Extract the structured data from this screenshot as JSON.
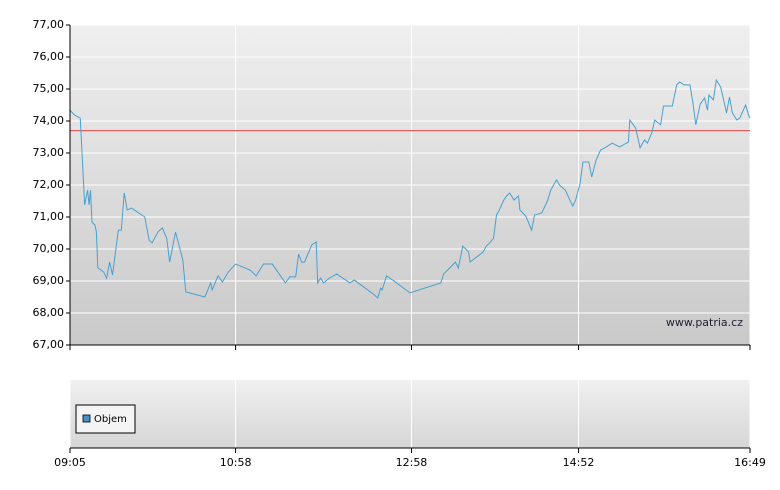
{
  "chart_data": {
    "type": "line",
    "watermark": "www.patria.cz",
    "xlim": [
      545,
      1009
    ],
    "xticks": [
      {
        "value": 545,
        "label": "09:05"
      },
      {
        "value": 658,
        "label": "10:58"
      },
      {
        "value": 778,
        "label": "12:58"
      },
      {
        "value": 892,
        "label": "14:52"
      },
      {
        "value": 1009,
        "label": "16:49"
      }
    ],
    "ylim": [
      67,
      77
    ],
    "yticks": [
      {
        "value": 67,
        "label": "67,00"
      },
      {
        "value": 68,
        "label": "68,00"
      },
      {
        "value": 69,
        "label": "69,00"
      },
      {
        "value": 70,
        "label": "70,00"
      },
      {
        "value": 71,
        "label": "71,00"
      },
      {
        "value": 72,
        "label": "72,00"
      },
      {
        "value": 73,
        "label": "73,00"
      },
      {
        "value": 74,
        "label": "74,00"
      },
      {
        "value": 75,
        "label": "75,00"
      },
      {
        "value": 76,
        "label": "76,00"
      },
      {
        "value": 77,
        "label": "77,00"
      }
    ],
    "grid": true,
    "reference_line": {
      "value": 73.7,
      "color": "#e06060"
    },
    "volume_legend": {
      "label": "Objem",
      "color": "#4a90c8"
    },
    "series": [
      {
        "color": "#4aa0d0",
        "x": [
          545,
          548,
          552,
          555,
          557,
          558,
          559,
          560,
          562,
          563,
          564,
          568,
          570,
          572,
          574,
          578,
          580,
          582,
          584,
          587,
          596,
          599,
          601,
          605,
          608,
          611,
          613,
          617,
          622,
          624,
          637,
          641,
          642,
          646,
          649,
          653,
          658,
          668,
          672,
          677,
          683,
          692,
          695,
          699,
          701,
          703,
          705,
          710,
          713,
          714,
          716,
          718,
          722,
          727,
          736,
          739,
          752,
          755,
          757,
          758,
          761,
          767,
          777,
          798,
          800,
          808,
          810,
          813,
          817,
          818,
          827,
          829,
          832,
          834,
          836,
          838,
          841,
          843,
          845,
          848,
          851,
          852,
          856,
          860,
          862,
          867,
          871,
          873,
          875,
          877,
          879,
          883,
          888,
          890,
          893,
          895,
          899,
          901,
          904,
          907,
          911,
          915,
          920,
          926,
          927,
          931,
          934,
          937,
          939,
          942,
          944,
          948,
          950,
          956,
          959,
          961,
          964,
          968,
          970,
          972,
          975,
          978,
          980,
          981,
          984,
          986,
          989,
          991,
          993,
          995,
          997,
          1000,
          1002,
          1006,
          1008,
          1009
        ],
        "values": [
          74.34,
          74.19,
          74.09,
          71.38,
          71.84,
          71.38,
          71.84,
          70.84,
          70.75,
          70.53,
          69.41,
          69.28,
          69.09,
          69.59,
          69.19,
          70.59,
          70.59,
          71.75,
          71.22,
          71.28,
          71.0,
          70.28,
          70.19,
          70.53,
          70.66,
          70.34,
          69.59,
          70.53,
          69.66,
          68.66,
          68.5,
          68.94,
          68.72,
          69.16,
          68.97,
          69.28,
          69.53,
          69.34,
          69.16,
          69.53,
          69.53,
          68.94,
          69.13,
          69.13,
          69.84,
          69.59,
          69.59,
          70.13,
          70.22,
          68.94,
          69.09,
          68.94,
          69.09,
          69.22,
          68.94,
          69.03,
          68.59,
          68.47,
          68.78,
          68.72,
          69.16,
          68.97,
          68.63,
          68.94,
          69.22,
          69.59,
          69.41,
          70.09,
          69.91,
          69.59,
          69.91,
          70.09,
          70.22,
          70.34,
          71.06,
          71.22,
          71.53,
          71.66,
          71.75,
          71.53,
          71.66,
          71.22,
          71.03,
          70.59,
          71.06,
          71.13,
          71.53,
          71.84,
          72.0,
          72.16,
          72.0,
          71.84,
          71.34,
          71.53,
          72.03,
          72.72,
          72.72,
          72.25,
          72.78,
          73.09,
          73.19,
          73.31,
          73.19,
          73.34,
          74.03,
          73.78,
          73.16,
          73.41,
          73.31,
          73.63,
          74.03,
          73.88,
          74.47,
          74.47,
          75.13,
          75.22,
          75.13,
          75.13,
          74.59,
          73.88,
          74.53,
          74.72,
          74.34,
          74.81,
          74.66,
          75.28,
          75.06,
          74.66,
          74.25,
          74.75,
          74.25,
          74.03,
          74.09,
          74.5,
          74.19,
          74.09
        ]
      }
    ]
  }
}
